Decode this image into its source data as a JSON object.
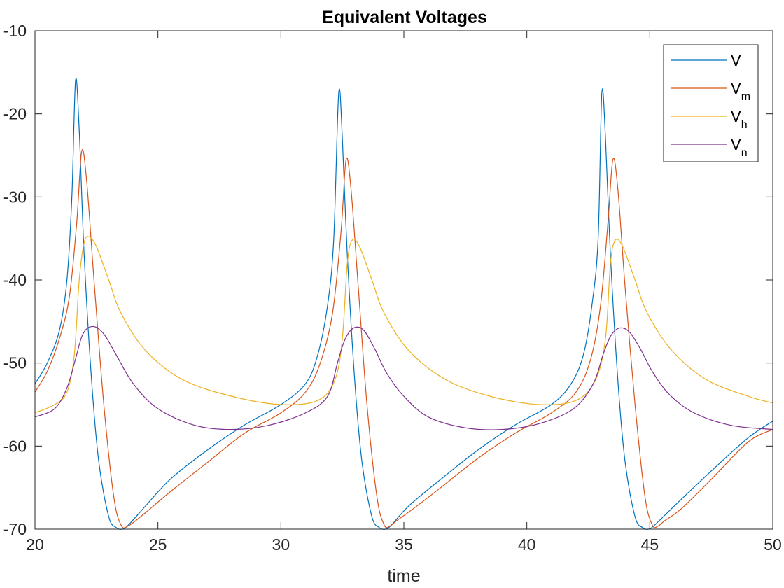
{
  "chart_data": {
    "type": "line",
    "title": "Equivalent Voltages",
    "xlabel": "time",
    "ylabel": "",
    "xlim": [
      20,
      50
    ],
    "ylim": [
      -70,
      -10
    ],
    "xticks": [
      20,
      25,
      30,
      35,
      40,
      45,
      50
    ],
    "yticks": [
      -70,
      -60,
      -50,
      -40,
      -30,
      -20,
      -10
    ],
    "xtick_labels": [
      "20",
      "25",
      "30",
      "35",
      "40",
      "45",
      "50"
    ],
    "ytick_labels": [
      "-70",
      "-60",
      "-50",
      "-40",
      "-30",
      "-20",
      "-10"
    ],
    "grid": false,
    "legend_position": "top-right",
    "series": [
      {
        "name": "V",
        "label_main": "V",
        "label_sub": "",
        "color": "#0072BD",
        "x": [
          20,
          20.5,
          21,
          21.3,
          21.5,
          21.65,
          21.8,
          22.0,
          22.3,
          22.6,
          23.0,
          23.3,
          23.55,
          23.8,
          24.5,
          25.5,
          27,
          28.5,
          30,
          31,
          31.5,
          31.9,
          32.15,
          32.35,
          32.5,
          32.7,
          33.0,
          33.3,
          33.7,
          34.0,
          34.25,
          34.5,
          35.2,
          36.5,
          38,
          39.5,
          41,
          41.8,
          42.3,
          42.65,
          42.9,
          43.05,
          43.2,
          43.4,
          43.7,
          44.0,
          44.4,
          44.7,
          44.95,
          45.2,
          46,
          47.5,
          49,
          50
        ],
        "y": [
          -52.5,
          -50,
          -46,
          -40,
          -30,
          -16,
          -22,
          -37,
          -52,
          -62,
          -68.5,
          -69.8,
          -70,
          -69.5,
          -67.2,
          -64,
          -60.5,
          -57.5,
          -55,
          -52.5,
          -49,
          -43,
          -35,
          -17.5,
          -23,
          -37,
          -52,
          -62,
          -68.5,
          -69.8,
          -70,
          -69.5,
          -67.2,
          -64,
          -60.5,
          -57.5,
          -55,
          -52.5,
          -49,
          -43,
          -35,
          -17.5,
          -23,
          -37,
          -52,
          -62,
          -68.5,
          -69.8,
          -70,
          -69.5,
          -67.2,
          -63,
          -59,
          -57
        ]
      },
      {
        "name": "Vm",
        "label_main": "V",
        "label_sub": "m",
        "color": "#D95319",
        "x": [
          20,
          20.5,
          21,
          21.4,
          21.7,
          21.9,
          22.1,
          22.4,
          22.8,
          23.2,
          23.5,
          23.8,
          24.5,
          25.5,
          27,
          28.5,
          30,
          31,
          31.6,
          32.1,
          32.45,
          32.65,
          32.85,
          33.15,
          33.5,
          33.9,
          34.2,
          34.45,
          34.7,
          35.4,
          36.5,
          38,
          39.5,
          41,
          42,
          42.6,
          43.0,
          43.3,
          43.5,
          43.7,
          44.0,
          44.4,
          44.8,
          45.1,
          45.35,
          45.6,
          46.3,
          47.5,
          49,
          50
        ],
        "y": [
          -53.5,
          -51,
          -47,
          -42,
          -33,
          -24.5,
          -28,
          -40,
          -55,
          -66,
          -69.5,
          -69.6,
          -68,
          -65.5,
          -62,
          -58.5,
          -56,
          -53.5,
          -50,
          -44,
          -34,
          -25.5,
          -29,
          -41,
          -55,
          -66,
          -69.5,
          -69.6,
          -69,
          -67.5,
          -65,
          -61.5,
          -58.5,
          -56,
          -53.5,
          -49.5,
          -43,
          -33,
          -25.5,
          -29,
          -41,
          -55,
          -66,
          -69.5,
          -69.6,
          -69,
          -67.5,
          -64,
          -59.5,
          -58
        ]
      },
      {
        "name": "Vh",
        "label_main": "V",
        "label_sub": "h",
        "color": "#EDB120",
        "x": [
          20,
          20.8,
          21.3,
          21.6,
          21.8,
          22.0,
          22.2,
          22.5,
          23.0,
          23.5,
          24.5,
          26,
          28,
          30,
          31.5,
          32.2,
          32.5,
          32.7,
          32.9,
          33.2,
          33.7,
          34.2,
          35.2,
          36.7,
          38.5,
          40.5,
          42,
          42.8,
          43.2,
          43.4,
          43.6,
          43.9,
          44.4,
          44.9,
          45.9,
          47.3,
          49,
          50
        ],
        "y": [
          -56,
          -55,
          -53.5,
          -49,
          -40,
          -35.5,
          -34.8,
          -36,
          -40,
          -44,
          -48.5,
          -52,
          -54,
          -55,
          -54.5,
          -52,
          -47,
          -38,
          -35.2,
          -36,
          -40,
          -44,
          -48.5,
          -52,
          -54,
          -55,
          -54.5,
          -52,
          -47,
          -38,
          -35.2,
          -36,
          -40,
          -44,
          -48.5,
          -52,
          -54,
          -54.8
        ]
      },
      {
        "name": "Vn",
        "label_main": "V",
        "label_sub": "n",
        "color": "#7E2F8E",
        "x": [
          20,
          20.8,
          21.3,
          21.65,
          21.95,
          22.35,
          22.8,
          23.3,
          24,
          25,
          26.5,
          28,
          29.5,
          31,
          31.9,
          32.3,
          32.6,
          32.95,
          33.35,
          33.8,
          34.3,
          35,
          36,
          37.5,
          39,
          40.5,
          41.9,
          42.7,
          43.1,
          43.4,
          43.75,
          44.15,
          44.6,
          45.1,
          45.8,
          46.8,
          48.3,
          50
        ],
        "y": [
          -56.5,
          -55.5,
          -53,
          -49.5,
          -46.5,
          -45.6,
          -46.5,
          -49,
          -52.5,
          -55.5,
          -57.5,
          -58,
          -57.5,
          -56,
          -54,
          -50,
          -47.2,
          -45.8,
          -46,
          -48.2,
          -51.2,
          -54,
          -56.5,
          -57.8,
          -58,
          -57.3,
          -55.5,
          -52.5,
          -49,
          -46.8,
          -45.8,
          -46.2,
          -48.2,
          -51,
          -53.8,
          -56,
          -57.5,
          -58
        ]
      }
    ]
  }
}
